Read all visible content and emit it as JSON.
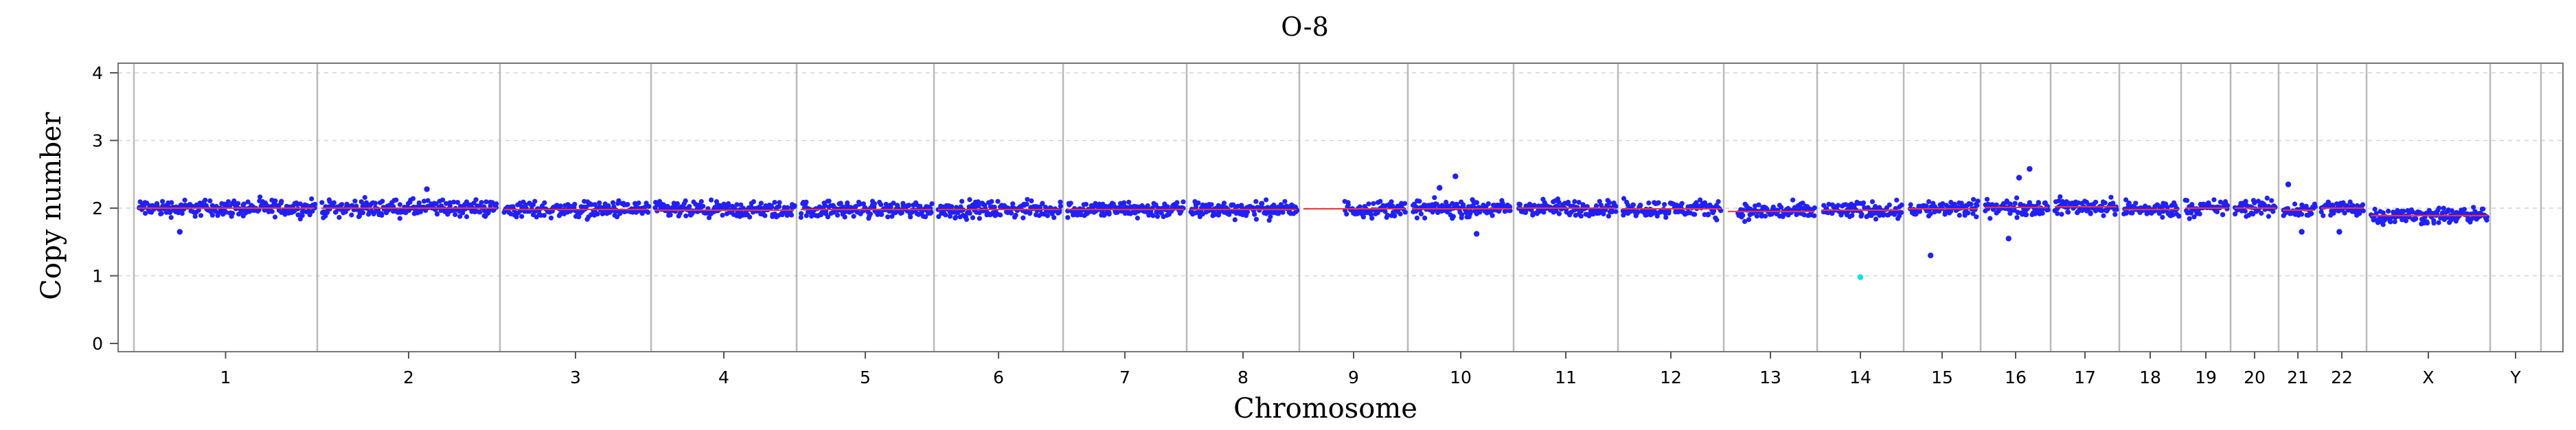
{
  "chart_data": {
    "type": "scatter",
    "title": "O-8",
    "xlabel": "Chromosome",
    "ylabel": "Copy number",
    "ylim": [
      0,
      4.2
    ],
    "yticks": [
      "0",
      "1",
      "2",
      "3",
      "4"
    ],
    "grid": true,
    "legend": "none",
    "colors": {
      "points": "#2020ff",
      "outlier_point": "#00e5e5",
      "segment": "#ff3030",
      "chromosome_separator": "#b9b9b9",
      "grid": "#d4d4d4"
    },
    "chromosomes": [
      {
        "label": "1",
        "baseline": 2.0
      },
      {
        "label": "2",
        "baseline": 2.0
      },
      {
        "label": "3",
        "baseline": 1.98
      },
      {
        "label": "4",
        "baseline": 1.97
      },
      {
        "label": "5",
        "baseline": 1.98
      },
      {
        "label": "6",
        "baseline": 1.98
      },
      {
        "label": "7",
        "baseline": 1.98
      },
      {
        "label": "8",
        "baseline": 1.98
      },
      {
        "label": "9",
        "baseline": 1.99
      },
      {
        "label": "10",
        "baseline": 1.99
      },
      {
        "label": "11",
        "baseline": 2.0
      },
      {
        "label": "12",
        "baseline": 1.99
      },
      {
        "label": "13",
        "baseline": 1.95
      },
      {
        "label": "14",
        "baseline": 1.97
      },
      {
        "label": "15",
        "baseline": 1.99
      },
      {
        "label": "16",
        "baseline": 2.01
      },
      {
        "label": "17",
        "baseline": 2.02
      },
      {
        "label": "18",
        "baseline": 1.98
      },
      {
        "label": "19",
        "baseline": 2.0
      },
      {
        "label": "20",
        "baseline": 2.0
      },
      {
        "label": "21",
        "baseline": 1.97
      },
      {
        "label": "22",
        "baseline": 2.0
      },
      {
        "label": "X",
        "baseline": 1.89
      },
      {
        "label": "Y",
        "baseline": null
      }
    ],
    "notable_points": [
      {
        "chromosome": "1",
        "y": 1.65
      },
      {
        "chromosome": "2",
        "y": 2.28
      },
      {
        "chromosome": "10",
        "y": 2.47
      },
      {
        "chromosome": "10",
        "y": 2.3
      },
      {
        "chromosome": "10",
        "y": 1.62
      },
      {
        "chromosome": "14",
        "y": 0.98,
        "color": "#00e5e5"
      },
      {
        "chromosome": "15",
        "y": 1.3
      },
      {
        "chromosome": "16",
        "y": 2.58
      },
      {
        "chromosome": "16",
        "y": 2.45
      },
      {
        "chromosome": "16",
        "y": 1.55
      },
      {
        "chromosome": "21",
        "y": 2.35
      },
      {
        "chromosome": "21",
        "y": 1.65
      },
      {
        "chromosome": "22",
        "y": 1.65
      }
    ]
  }
}
